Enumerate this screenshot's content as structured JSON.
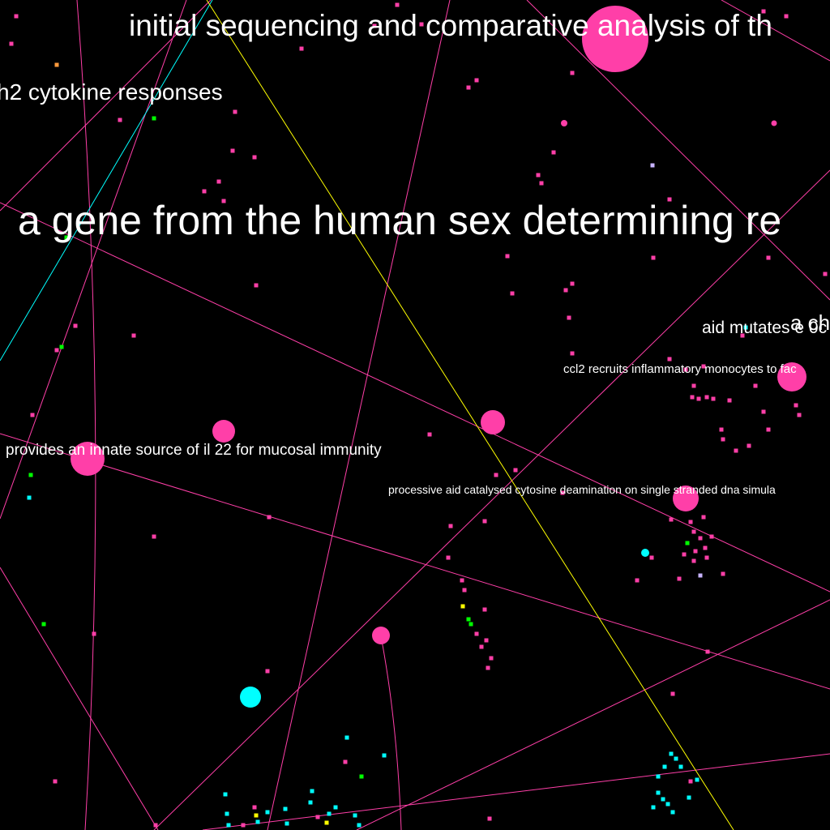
{
  "colors": {
    "background": "#000000",
    "pink": "#ff3fa8",
    "cyan": "#00ffff",
    "yellow": "#ffff00",
    "green": "#00ff00",
    "lavender": "#c8b4ff",
    "orange": "#ff9a3c",
    "label": "#ffffff"
  },
  "labels": {
    "title_initial_sequencing": "initial sequencing and comparative analysis of th",
    "th2_cytokine": "h2 cytokine responses",
    "sex_determining": "a gene from the human sex determining re",
    "aid_mutates": "aid mutates e 0c",
    "a_ch": "a ch",
    "ccl2": "ccl2 recruits inflammatory monocytes to fac",
    "il22": "provides an innate source of il 22 for mucosal immunity",
    "processive_aid": "processive aid catalysed cytosine deamination on single stranded dna simula"
  }
}
